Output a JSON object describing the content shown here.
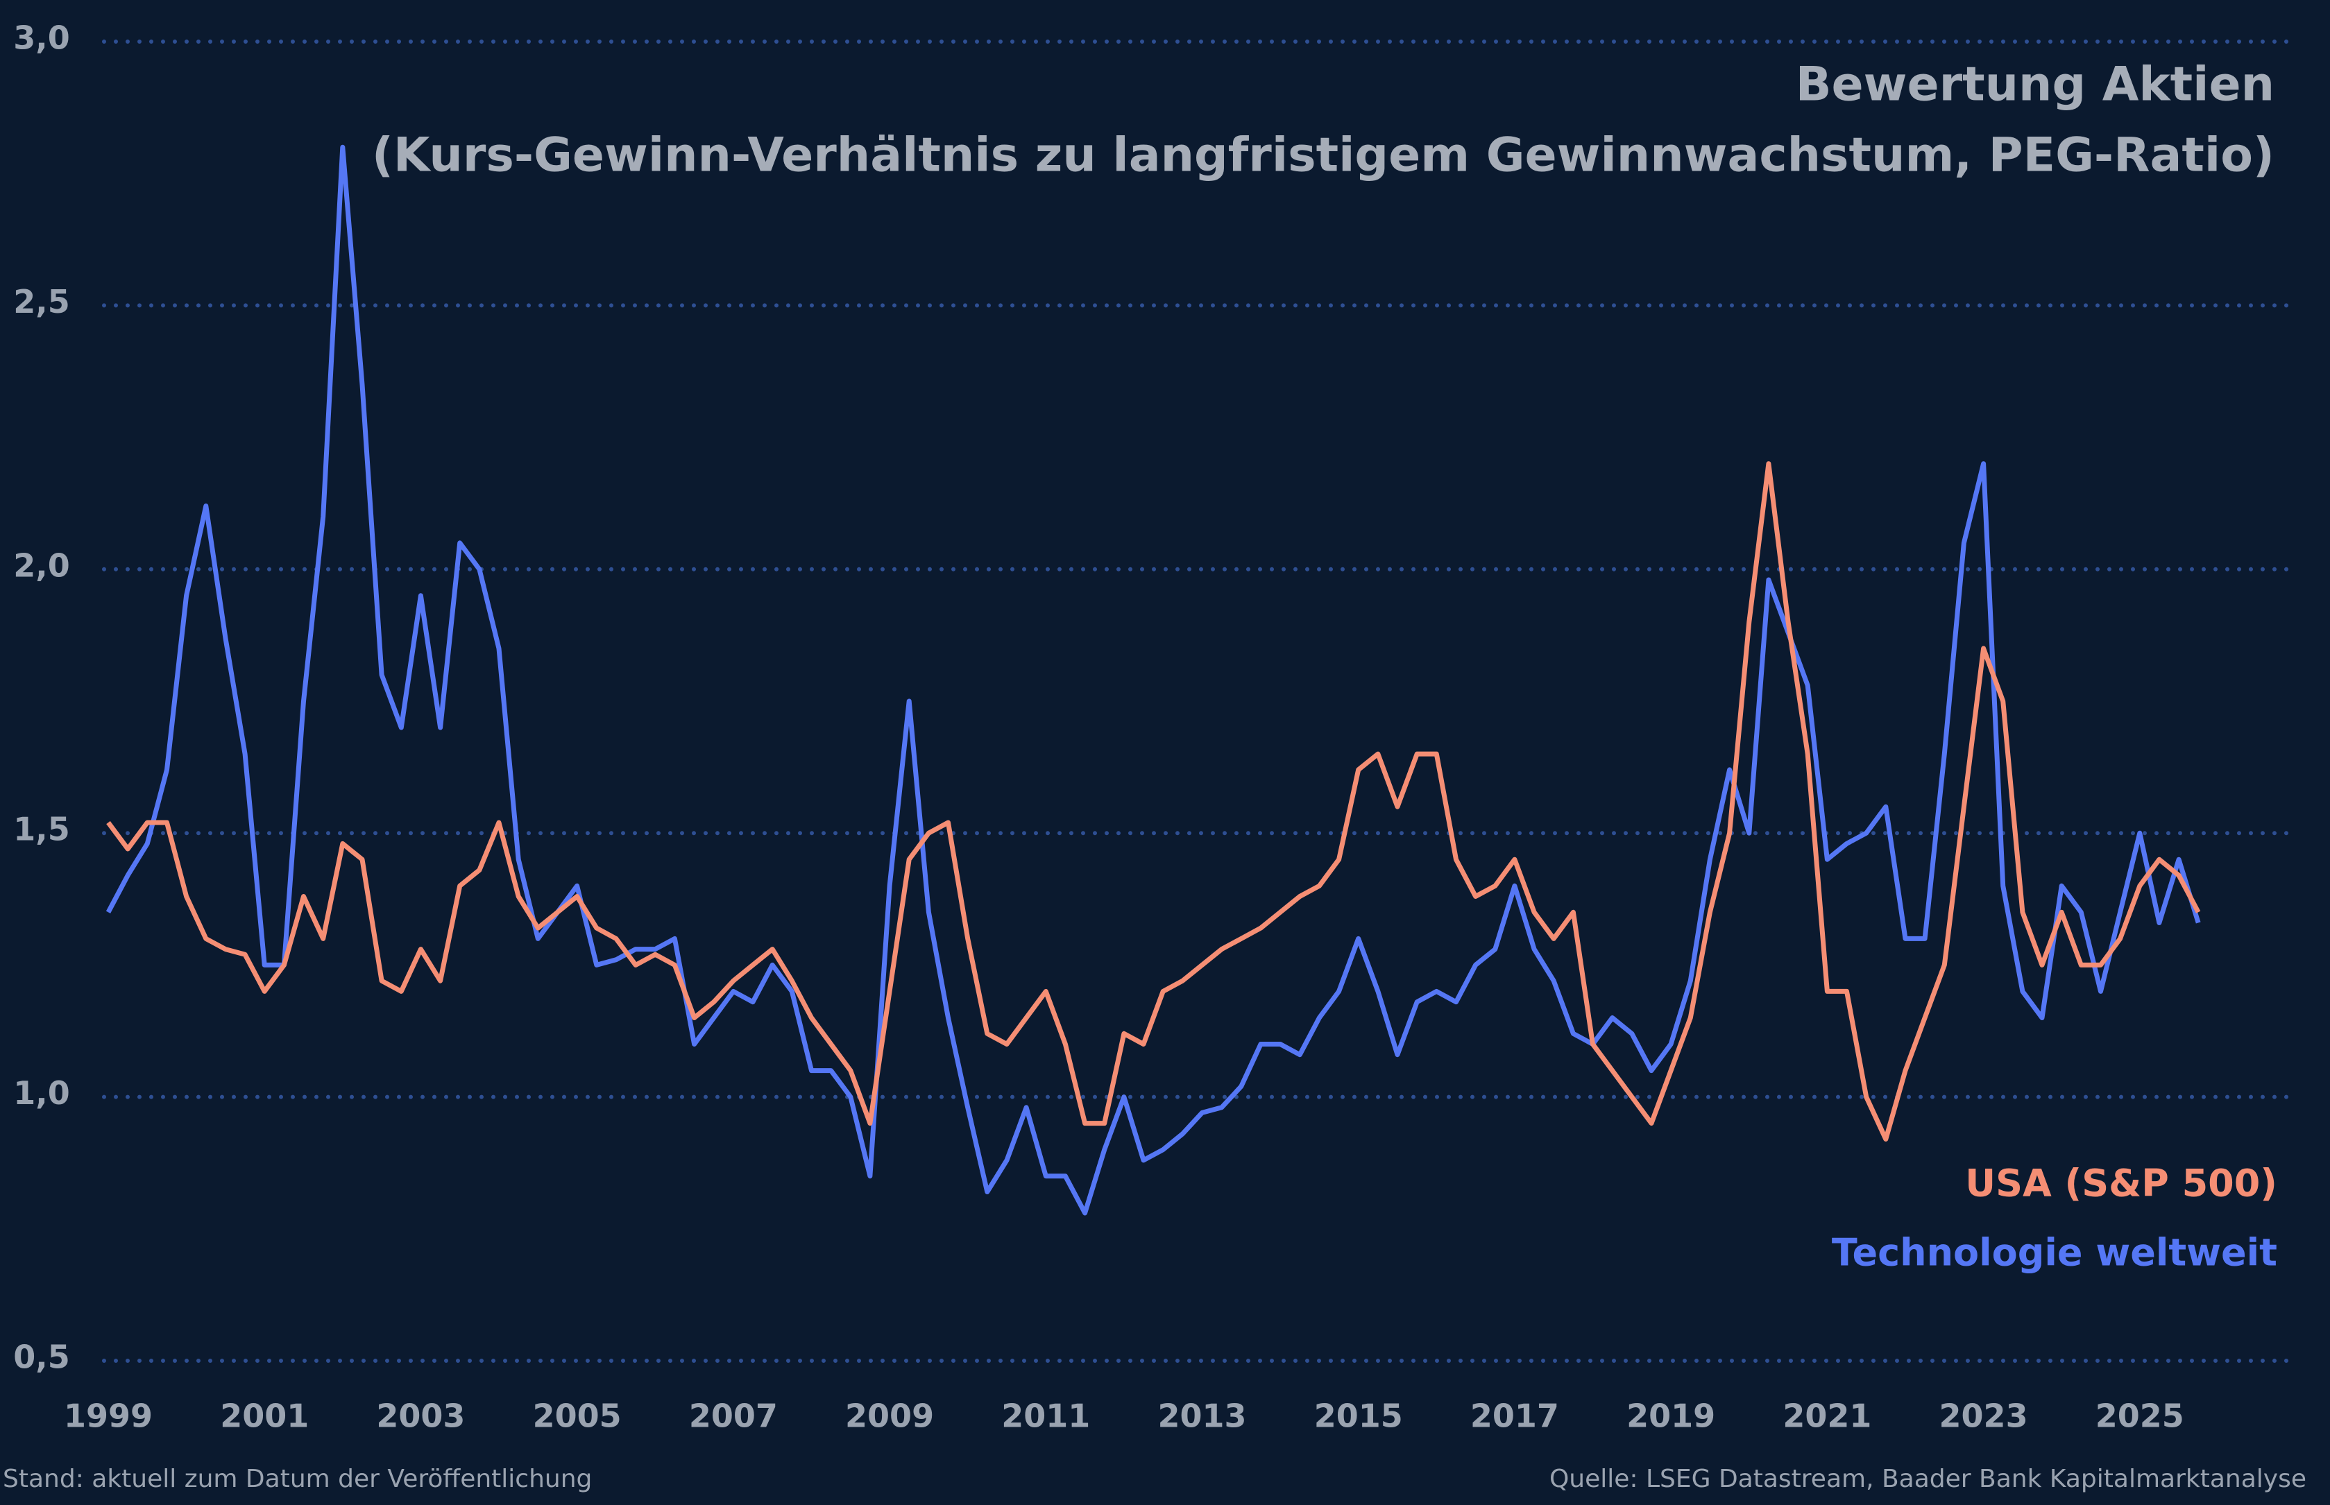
{
  "chart_data": {
    "type": "line",
    "title": "Bewertung Aktien",
    "subtitle": "(Kurs-Gewinn-Verhältnis zu langfristigem Gewinnwachstum, PEG-Ratio)",
    "footnote": "Stand: aktuell zum Datum der Veröffentlichung",
    "source": "Quelle: LSEG Datastream, Baader Bank Kapitalmarktanalyse",
    "grid": true,
    "xlim": [
      1999,
      2027
    ],
    "xticks": [
      1999,
      2001,
      2003,
      2005,
      2007,
      2009,
      2011,
      2013,
      2015,
      2017,
      2019,
      2021,
      2023,
      2025
    ],
    "ylim": [
      0.5,
      3.0
    ],
    "yticks": [
      {
        "value": 0.5,
        "label": "0,5"
      },
      {
        "value": 1.0,
        "label": "1,0"
      },
      {
        "value": 1.5,
        "label": "1,5"
      },
      {
        "value": 2.0,
        "label": "2,0"
      },
      {
        "value": 2.5,
        "label": "2,5"
      },
      {
        "value": 3.0,
        "label": "3,0"
      }
    ],
    "x": [
      1999,
      1999.25,
      1999.5,
      1999.75,
      2000,
      2000.25,
      2000.5,
      2000.75,
      2001,
      2001.25,
      2001.5,
      2001.75,
      2002,
      2002.25,
      2002.5,
      2002.75,
      2003,
      2003.25,
      2003.5,
      2003.75,
      2004,
      2004.25,
      2004.5,
      2004.75,
      2005,
      2005.25,
      2005.5,
      2005.75,
      2006,
      2006.25,
      2006.5,
      2006.75,
      2007,
      2007.25,
      2007.5,
      2007.75,
      2008,
      2008.25,
      2008.5,
      2008.75,
      2009,
      2009.25,
      2009.5,
      2009.75,
      2010,
      2010.25,
      2010.5,
      2010.75,
      2011,
      2011.25,
      2011.5,
      2011.75,
      2012,
      2012.25,
      2012.5,
      2012.75,
      2013,
      2013.25,
      2013.5,
      2013.75,
      2014,
      2014.25,
      2014.5,
      2014.75,
      2015,
      2015.25,
      2015.5,
      2015.75,
      2016,
      2016.25,
      2016.5,
      2016.75,
      2017,
      2017.25,
      2017.5,
      2017.75,
      2018,
      2018.25,
      2018.5,
      2018.75,
      2019,
      2019.25,
      2019.5,
      2019.75,
      2020,
      2020.25,
      2020.5,
      2020.75,
      2021,
      2021.25,
      2021.5,
      2021.75,
      2022,
      2022.25,
      2022.5,
      2022.75,
      2023,
      2023.25,
      2023.5,
      2023.75,
      2024,
      2024.25,
      2024.5,
      2024.75,
      2025,
      2025.25,
      2025.5,
      2025.75
    ],
    "series": [
      {
        "name": "Technologie weltweit",
        "color": "#5577f5",
        "values": [
          1.35,
          1.42,
          1.48,
          1.62,
          1.95,
          2.12,
          1.87,
          1.65,
          1.25,
          1.25,
          1.75,
          2.1,
          2.8,
          2.35,
          1.8,
          1.7,
          1.95,
          1.7,
          2.05,
          2.0,
          1.85,
          1.45,
          1.3,
          1.35,
          1.4,
          1.25,
          1.26,
          1.28,
          1.28,
          1.3,
          1.1,
          1.15,
          1.2,
          1.18,
          1.25,
          1.2,
          1.05,
          1.05,
          1.0,
          0.85,
          1.4,
          1.75,
          1.35,
          1.15,
          0.98,
          0.82,
          0.88,
          0.98,
          0.85,
          0.85,
          0.78,
          0.9,
          1.0,
          0.88,
          0.9,
          0.93,
          0.97,
          0.98,
          1.02,
          1.1,
          1.1,
          1.08,
          1.15,
          1.2,
          1.3,
          1.2,
          1.08,
          1.18,
          1.2,
          1.18,
          1.25,
          1.28,
          1.4,
          1.28,
          1.22,
          1.12,
          1.1,
          1.15,
          1.12,
          1.05,
          1.1,
          1.22,
          1.45,
          1.62,
          1.5,
          1.98,
          1.88,
          1.78,
          1.45,
          1.48,
          1.5,
          1.55,
          1.3,
          1.3,
          1.65,
          2.05,
          2.2,
          1.4,
          1.2,
          1.15,
          1.4,
          1.35,
          1.2,
          1.35,
          1.5,
          1.33,
          1.45,
          1.33
        ]
      },
      {
        "name": "USA (S&P 500)",
        "color": "#f58e74",
        "values": [
          1.52,
          1.47,
          1.52,
          1.52,
          1.38,
          1.3,
          1.28,
          1.27,
          1.2,
          1.25,
          1.38,
          1.3,
          1.48,
          1.45,
          1.22,
          1.2,
          1.28,
          1.22,
          1.4,
          1.43,
          1.52,
          1.38,
          1.32,
          1.35,
          1.38,
          1.32,
          1.3,
          1.25,
          1.27,
          1.25,
          1.15,
          1.18,
          1.22,
          1.25,
          1.28,
          1.22,
          1.15,
          1.1,
          1.05,
          0.95,
          1.2,
          1.45,
          1.5,
          1.52,
          1.3,
          1.12,
          1.1,
          1.15,
          1.2,
          1.1,
          0.95,
          0.95,
          1.12,
          1.1,
          1.2,
          1.22,
          1.25,
          1.28,
          1.3,
          1.32,
          1.35,
          1.38,
          1.4,
          1.45,
          1.62,
          1.65,
          1.55,
          1.65,
          1.65,
          1.45,
          1.38,
          1.4,
          1.45,
          1.35,
          1.3,
          1.35,
          1.1,
          1.05,
          1.0,
          0.95,
          1.05,
          1.15,
          1.35,
          1.5,
          1.9,
          2.2,
          1.9,
          1.65,
          1.2,
          1.2,
          1.0,
          0.92,
          1.05,
          1.15,
          1.25,
          1.55,
          1.85,
          1.75,
          1.35,
          1.25,
          1.35,
          1.25,
          1.25,
          1.3,
          1.4,
          1.45,
          1.42,
          1.35
        ]
      }
    ]
  }
}
